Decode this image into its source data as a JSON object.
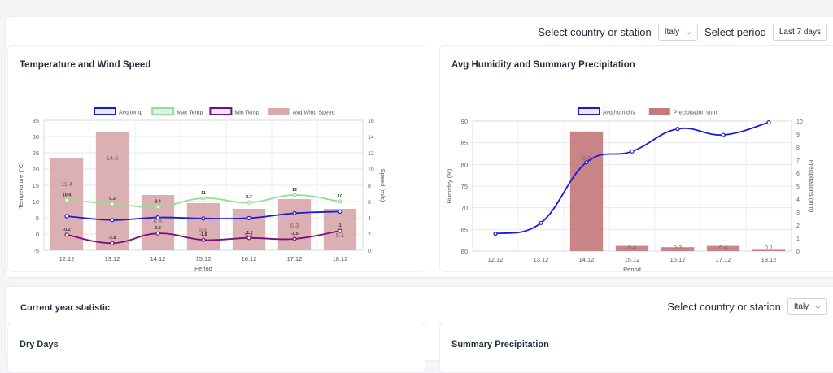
{
  "filters": {
    "country_label": "Select country or station",
    "country_value": "Italy",
    "period_label": "Select period",
    "period_value": "Last 7 days"
  },
  "chart_data": [
    {
      "type": "bar",
      "title": "Temperature and Wind Speed",
      "categories": [
        "12.12",
        "13.12",
        "14.12",
        "15.12",
        "16.12",
        "17.12",
        "18.12"
      ],
      "xlabel": "Period",
      "ylabel": "Temperature (°C)",
      "y2label": "Speed (m/s)",
      "ylim": [
        -5,
        35
      ],
      "y2lim": [
        0,
        16
      ],
      "yticks": [
        -5,
        0,
        5,
        10,
        15,
        20,
        25,
        30,
        35
      ],
      "y2ticks": [
        0,
        2,
        4,
        6,
        8,
        10,
        12,
        14,
        16
      ],
      "grid": true,
      "legend": "top",
      "series": [
        {
          "name": "Avg temp",
          "type": "line",
          "axis": "left",
          "color": "#1a1adb",
          "values": [
            5.5,
            4.3,
            5.1,
            4.8,
            4.9,
            6.4,
            6.9
          ],
          "labels": []
        },
        {
          "name": "Max Temp",
          "type": "line",
          "axis": "left",
          "color": "#90e090",
          "values": [
            10.4,
            9.3,
            8.4,
            11,
            9.7,
            12,
            10
          ],
          "labels": [
            "10.4",
            "9.3",
            "8.4",
            "11",
            "9.7",
            "12",
            "10"
          ]
        },
        {
          "name": "Min Temp",
          "type": "line",
          "axis": "left",
          "color": "#7a0f7a",
          "values": [
            -0.2,
            -2.8,
            0.2,
            -1.8,
            -1.2,
            -1.5,
            1
          ],
          "labels": [
            "-0.2",
            "-2.8",
            "0.2",
            "-1.8",
            "-1.2",
            "-1.5",
            "1"
          ]
        },
        {
          "name": "Avg Wind Speed",
          "type": "bar",
          "axis": "right",
          "color": "#d9a9ad",
          "values": [
            11.4,
            14.6,
            6.8,
            5.8,
            5.1,
            6.3,
            5.1
          ],
          "labels": [
            "11.4",
            "14.6",
            "6.8",
            "5.8",
            "5.1",
            "6.3",
            "5.1"
          ]
        }
      ]
    },
    {
      "type": "bar",
      "title": "Avg Humidity and Summary Precipitation",
      "categories": [
        "12.12",
        "13.12",
        "14.12",
        "15.12",
        "16.12",
        "17.12",
        "18.12"
      ],
      "xlabel": "Period",
      "ylabel": "Humidity (%)",
      "y2label": "Precipitations (mm)",
      "ylim": [
        60,
        90
      ],
      "y2lim": [
        0,
        10
      ],
      "yticks": [
        60,
        65,
        70,
        75,
        80,
        85,
        90
      ],
      "y2ticks": [
        0,
        1,
        2,
        3,
        4,
        5,
        6,
        7,
        8,
        9,
        10
      ],
      "grid": true,
      "legend": "top",
      "series": [
        {
          "name": "Avg humidity",
          "type": "line",
          "axis": "left",
          "color": "#1a1adb",
          "values": [
            64,
            66.5,
            80.5,
            83,
            88.2,
            86.8,
            89.7
          ],
          "labels": []
        },
        {
          "name": "Precipitation sum",
          "type": "bar",
          "axis": "right",
          "color": "#c47a7d",
          "values": [
            0,
            0,
            9.2,
            0.4,
            0.3,
            0.4,
            0.1
          ],
          "labels": [
            "",
            "",
            "9.2",
            "0.4",
            "0.3",
            "0.4",
            "0.1"
          ]
        }
      ]
    }
  ],
  "bottom": {
    "title": "Current year statistic",
    "country_label": "Select country or station",
    "country_value": "Italy",
    "card1_title": "Dry Days",
    "card2_title": "Summary Precipitation"
  }
}
